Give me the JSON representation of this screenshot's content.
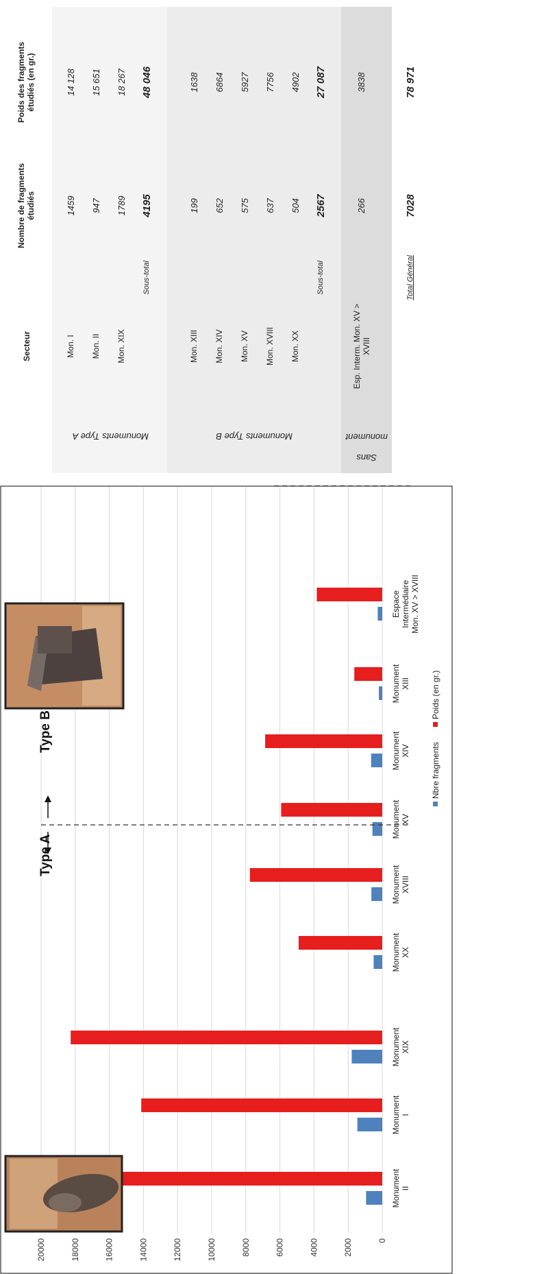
{
  "colors": {
    "fragments": "#4f81bd",
    "weight": "#e61e1e",
    "grid": "#d9d9d9"
  },
  "chart_data": {
    "type": "bar",
    "categories": [
      "Monument II",
      "Monument I",
      "Monument XIX",
      "Monument XX",
      "Monument XVIII",
      "Monument XV",
      "Monument XIV",
      "Monument XIII",
      "Espace Intermédiaire Mon. XV > XVIII"
    ],
    "category_lines": [
      [
        "Monument",
        "II"
      ],
      [
        "Monument",
        "I"
      ],
      [
        "Monument",
        "XIX"
      ],
      [
        "Monument",
        "XX"
      ],
      [
        "Monument",
        "XVIII"
      ],
      [
        "Monument",
        "XV"
      ],
      [
        "Monument",
        "XIV"
      ],
      [
        "Monument",
        "XIII"
      ],
      [
        "Espace",
        "Intermédiaire",
        "Mon. XV > XVIII"
      ]
    ],
    "series": [
      {
        "name": "Nbre fragments",
        "values": [
          947,
          1459,
          1789,
          504,
          637,
          575,
          652,
          199,
          266
        ]
      },
      {
        "name": "Poids (en gr.)",
        "values": [
          15651,
          14128,
          18267,
          4902,
          7756,
          5927,
          6864,
          1638,
          3838
        ]
      }
    ],
    "ylim": [
      0,
      20000
    ],
    "yticks": [
      0,
      2000,
      4000,
      6000,
      8000,
      10000,
      12000,
      14000,
      16000,
      18000,
      20000
    ],
    "annotations": [
      "Type A",
      "Type B"
    ],
    "grid": true,
    "legend": "bottom"
  },
  "table": {
    "headers": {
      "secteur": "Secteur",
      "nombre": "Nombre de fragments étudiés",
      "poids": "Poids des fragments étudiés (en gr.)"
    },
    "groups": [
      {
        "label": "Monuments Type A",
        "rows": [
          {
            "secteur": "Mon. I",
            "nombre": "1459",
            "poids": "14 128"
          },
          {
            "secteur": "Mon. II",
            "nombre": "947",
            "poids": "15 651"
          },
          {
            "secteur": "Mon. XIX",
            "nombre": "1789",
            "poids": "18 267"
          }
        ],
        "subtotal": {
          "label": "Sous-total",
          "nombre": "4195",
          "poids": "48 046"
        }
      },
      {
        "label": "Monuments Type B",
        "rows": [
          {
            "secteur": "Mon. XIII",
            "nombre": "199",
            "poids": "1638"
          },
          {
            "secteur": "Mon. XIV",
            "nombre": "652",
            "poids": "6864"
          },
          {
            "secteur": "Mon. XV",
            "nombre": "575",
            "poids": "5927"
          },
          {
            "secteur": "Mon. XVIII",
            "nombre": "637",
            "poids": "7756"
          },
          {
            "secteur": "Mon. XX",
            "nombre": "504",
            "poids": "4902"
          }
        ],
        "subtotal": {
          "label": "Sous-total",
          "nombre": "2567",
          "poids": "27 087"
        }
      },
      {
        "label": "Sans monument",
        "rows": [
          {
            "secteur": "Esp. Interm. Mon. XV > XVIII",
            "nombre": "266",
            "poids": "3838"
          }
        ]
      }
    ],
    "total": {
      "label": "Total Général",
      "nombre": "7028",
      "poids": "78 971"
    }
  }
}
